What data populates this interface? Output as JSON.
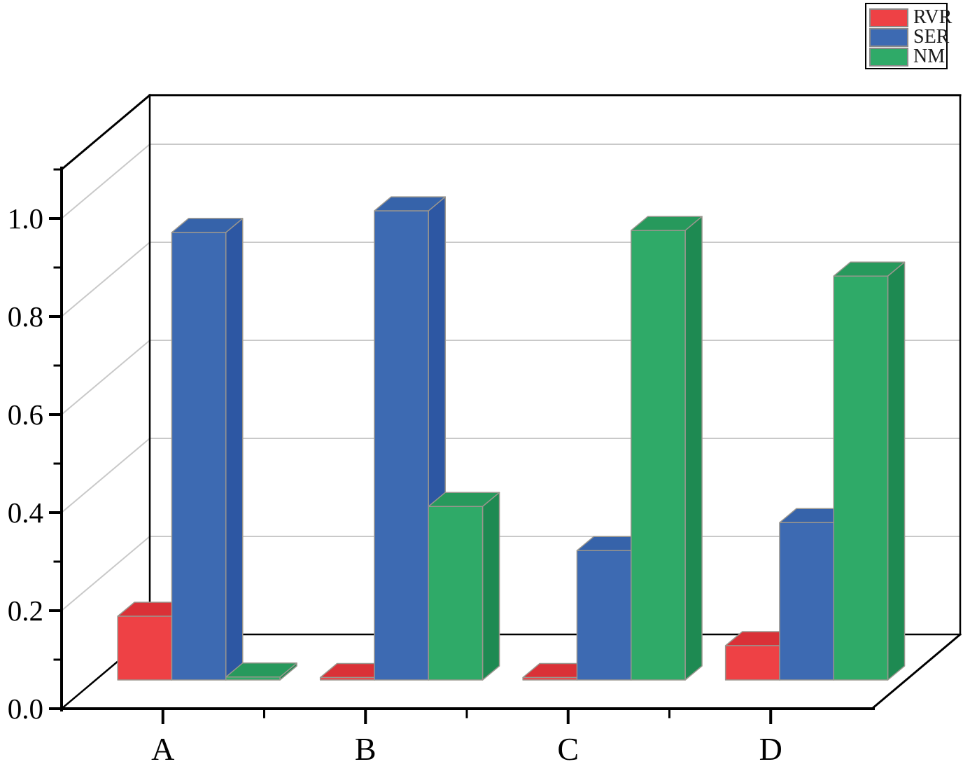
{
  "figure": {
    "background": "#ffffff",
    "description": "3D grouped bar chart with categories A-D and three series"
  },
  "legend": {
    "position": "top-right",
    "items": [
      {
        "label": "RVR",
        "color": "#ee4145"
      },
      {
        "label": "SER",
        "color": "#3d6ab2"
      },
      {
        "label": "NM",
        "color": "#2faa68"
      }
    ]
  },
  "chart_data": {
    "type": "bar",
    "projection": "3d",
    "title": "",
    "xlabel": "",
    "ylabel": "",
    "categories": [
      "A",
      "B",
      "C",
      "D"
    ],
    "series": [
      {
        "name": "RVR",
        "values": [
          0.13,
          0.005,
          0.005,
          0.07
        ],
        "face_colors": {
          "front": "#ee4145",
          "top": "#da3137",
          "side": "#bf2f38"
        }
      },
      {
        "name": "SER",
        "values": [
          0.913,
          0.957,
          0.264,
          0.321
        ],
        "face_colors": {
          "front": "#3d6ab2",
          "top": "#3663aa",
          "side": "#2d57a3"
        }
      },
      {
        "name": "NM",
        "values": [
          0.006,
          0.354,
          0.917,
          0.824
        ],
        "face_colors": {
          "front": "#2faa68",
          "top": "#27995c",
          "side": "#1e8a52"
        }
      }
    ],
    "ylim": [
      0.0,
      1.1
    ],
    "yticks": [
      0.0,
      0.2,
      0.4,
      0.6,
      0.8,
      1.0
    ],
    "ytick_labels": [
      "0.0",
      "0.2",
      "0.4",
      "0.6",
      "0.8",
      "1.0"
    ],
    "minor_ytick_values": [
      0.1,
      0.3,
      0.5,
      0.7,
      0.9,
      1.1
    ],
    "grid": true,
    "grid_color": "#c9c9c9",
    "axis_color": "#000000",
    "bar_edge_color": "#9a968e",
    "legend_position": "top-right"
  }
}
